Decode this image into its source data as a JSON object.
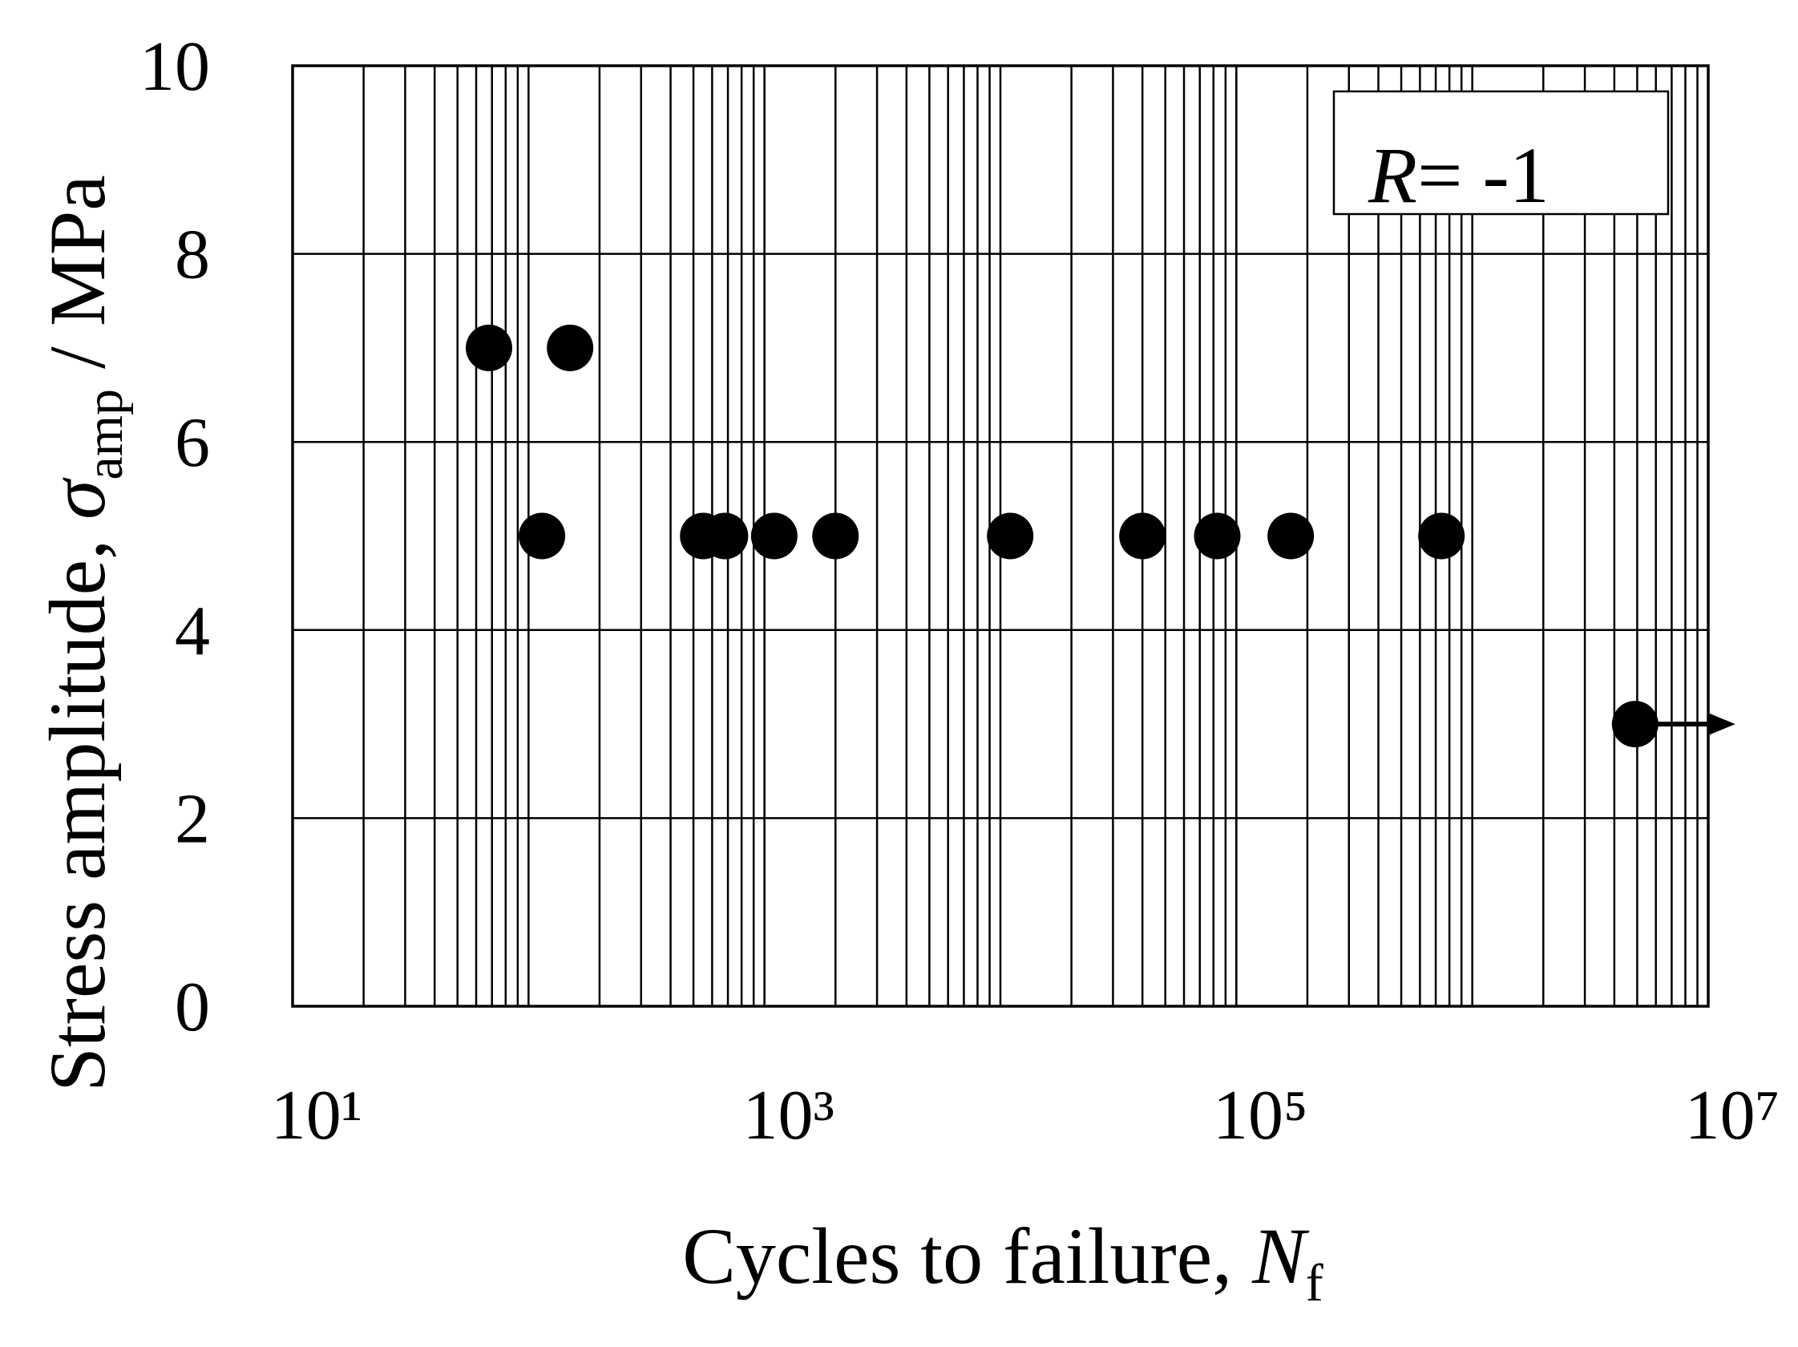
{
  "chart_data": {
    "type": "scatter",
    "xlabel": [
      "Cycles to failure, ",
      "N",
      "f"
    ],
    "ylabel": [
      "Stress amplitude, ",
      "σ",
      "amp",
      " / MPa"
    ],
    "annotation": [
      "R",
      "= -1"
    ],
    "x": [
      68,
      150,
      114,
      550,
      680,
      1100,
      2000,
      11000,
      40000,
      83000,
      170000,
      740000,
      4900000
    ],
    "values": [
      7,
      7,
      5,
      5,
      5,
      5,
      5,
      5,
      5,
      5,
      5,
      5,
      3
    ],
    "runout": [
      false,
      false,
      false,
      false,
      false,
      false,
      false,
      false,
      false,
      false,
      false,
      false,
      true
    ],
    "color": "#000000",
    "xscale": "log",
    "xlim": [
      10,
      10000000
    ],
    "xticks": [
      {
        "value": 10,
        "label": "10¹"
      },
      {
        "value": 1000,
        "label": "10³"
      },
      {
        "value": 100000,
        "label": "10⁵"
      },
      {
        "value": 10000000,
        "label": "10⁷"
      }
    ],
    "ylim": [
      0,
      10
    ],
    "yticks": [
      0,
      2,
      4,
      6,
      8,
      10
    ],
    "grid": true
  }
}
